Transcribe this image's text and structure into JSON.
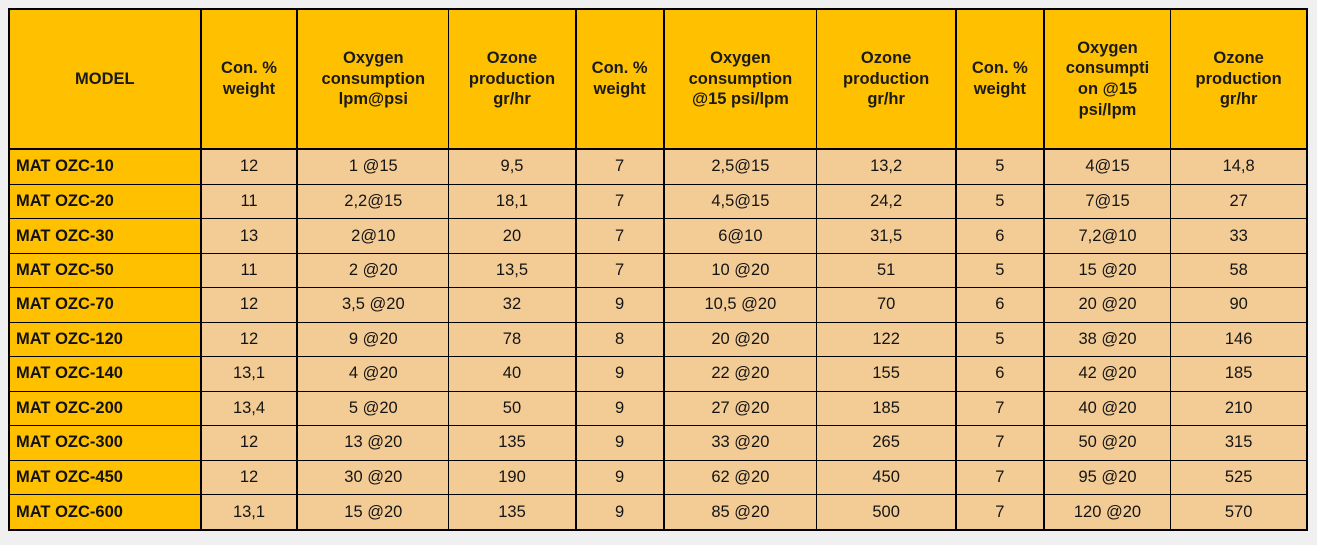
{
  "chart_data": {
    "type": "table",
    "title": "",
    "columns": [
      {
        "label": "MODEL"
      },
      {
        "label": "Con. %\nweight"
      },
      {
        "label": "Oxygen\nconsumption\nlpm@psi"
      },
      {
        "label": "Ozone\nproduction\ngr/hr"
      },
      {
        "label": "Con. %\nweight"
      },
      {
        "label": "Oxygen\nconsumption\n@15 psi/lpm"
      },
      {
        "label": "Ozone\nproduction\ngr/hr"
      },
      {
        "label": "Con. %\nweight"
      },
      {
        "label": "Oxygen\nconsumpti\non @15\npsi/lpm"
      },
      {
        "label": "Ozone\nproduction\ngr/hr"
      }
    ],
    "rows": [
      [
        "MAT OZC-10",
        "12",
        "1 @15",
        "9,5",
        "7",
        "2,5@15",
        "13,2",
        "5",
        "4@15",
        "14,8"
      ],
      [
        "MAT OZC-20",
        "11",
        "2,2@15",
        "18,1",
        "7",
        "4,5@15",
        "24,2",
        "5",
        "7@15",
        "27"
      ],
      [
        "MAT OZC-30",
        "13",
        "2@10",
        "20",
        "7",
        "6@10",
        "31,5",
        "6",
        "7,2@10",
        "33"
      ],
      [
        "MAT OZC-50",
        "11",
        "2 @20",
        "13,5",
        "7",
        "10 @20",
        "51",
        "5",
        "15 @20",
        "58"
      ],
      [
        "MAT OZC-70",
        "12",
        "3,5 @20",
        "32",
        "9",
        "10,5 @20",
        "70",
        "6",
        "20 @20",
        "90"
      ],
      [
        "MAT OZC-120",
        "12",
        "9 @20",
        "78",
        "8",
        "20 @20",
        "122",
        "5",
        "38 @20",
        "146"
      ],
      [
        "MAT OZC-140",
        "13,1",
        "4 @20",
        "40",
        "9",
        "22 @20",
        "155",
        "6",
        "42 @20",
        "185"
      ],
      [
        "MAT OZC-200",
        "13,4",
        "5 @20",
        "50",
        "9",
        "27 @20",
        "185",
        "7",
        "40 @20",
        "210"
      ],
      [
        "MAT OZC-300",
        "12",
        "13 @20",
        "135",
        "9",
        "33 @20",
        "265",
        "7",
        "50 @20",
        "315"
      ],
      [
        "MAT OZC-450",
        "12",
        "30 @20",
        "190",
        "9",
        "62 @20",
        "450",
        "7",
        "95 @20",
        "525"
      ],
      [
        "MAT OZC-600",
        "13,1",
        "15 @20",
        "135",
        "9",
        "85 @20",
        "500",
        "7",
        "120 @20",
        "570"
      ]
    ]
  },
  "colors": {
    "header_bg": "#FFC000",
    "model_column_bg": "#FFC000",
    "cell_bg": "#F3CB95",
    "grid": "#000000",
    "page_bg": "#F0F0F0",
    "text": "#1A1A1A"
  }
}
